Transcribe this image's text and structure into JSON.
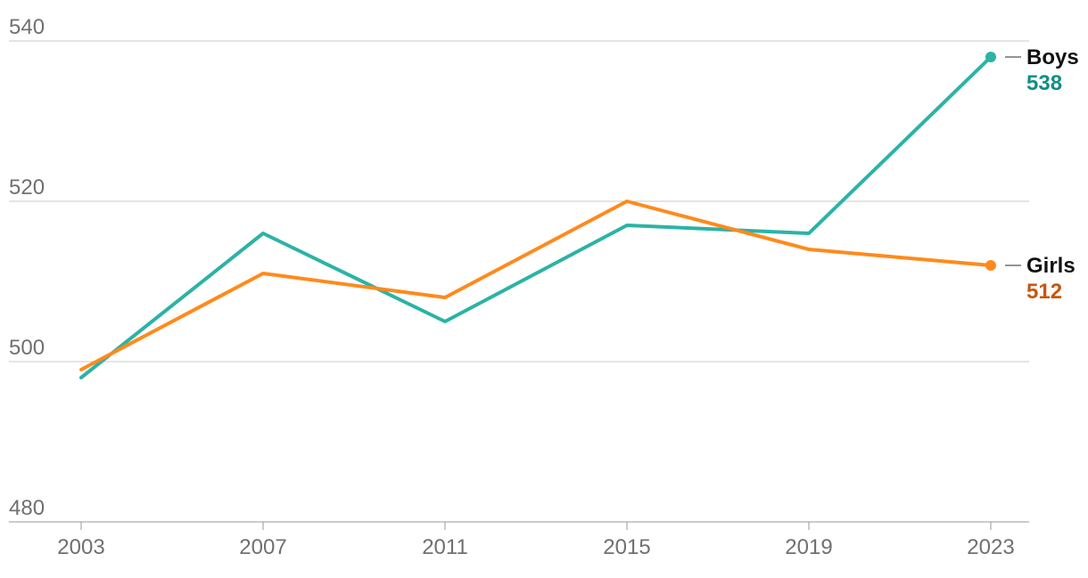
{
  "chart_data": {
    "type": "line",
    "x": [
      "2003",
      "2007",
      "2011",
      "2015",
      "2019",
      "2023"
    ],
    "series": [
      {
        "name": "Boys",
        "values": [
          498,
          516,
          505,
          517,
          516,
          538
        ],
        "end_label": "538",
        "color": "#2bb3a6",
        "label_color": "#0f8f84"
      },
      {
        "name": "Girls",
        "values": [
          499,
          511,
          508,
          520,
          514,
          512
        ],
        "end_label": "512",
        "color": "#ff8a1c",
        "label_color": "#c8560d"
      }
    ],
    "y_ticks": [
      {
        "value": 480,
        "label": "480"
      },
      {
        "value": 500,
        "label": "500"
      },
      {
        "value": 520,
        "label": "520"
      },
      {
        "value": 540,
        "label": "540"
      }
    ],
    "ylim": [
      480,
      540
    ],
    "grid": true,
    "legend": "end-of-line labels, right"
  }
}
